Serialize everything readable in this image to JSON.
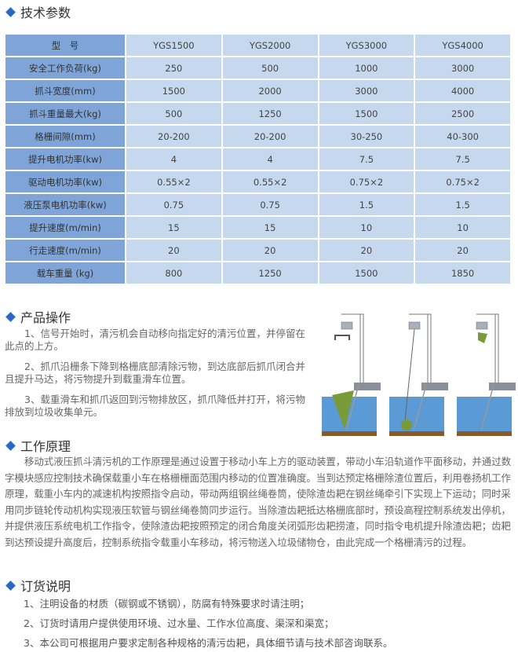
{
  "sections": {
    "specs": {
      "title": "技术参数"
    },
    "operation": {
      "title": "产品操作",
      "items": [
        "1、信号开始时，清污机会自动移向指定好的清污位置，并停留在此点的上方。",
        "2、抓爪沿栅条下降到格栅底部清除污物，到达底部后抓爪闭合并且提升马达，将污物提升到载重滑车位置。",
        "3、载重滑车和抓爪返回到污物排放区，抓爪降低并打开，将污物排放到垃圾收集单元。"
      ]
    },
    "principle": {
      "title": "工作原理",
      "text": "移动式液压抓斗清污机的工作原理是通过设置于移动小车上方的驱动装置，带动小车沿轨道作平面移动，并通过数字模块感应控制技术确保载重小车在格栅栅面范围内移动的位置准确度。当到达预定格栅除渣位置后，利用卷扬机工作原理，载重小车内的减速机构按照指令启动，带动两组钢丝绳卷筒，使除渣齿耙在钢丝绳牵引下实现上下运动；同时采用同步链轮传动机构实现液压软管与钢丝绳卷筒同步运行。当除渣齿耙抵达格栅底部时，预设高程控制系统发出停机，并提供液压系统电机工作指令，使除渣齿耙按照预定的闭合角度关闭弧形齿耙捞渣，同时指令电机提升除渣齿耙；齿耙到达预设提升高度后，控制系统指令载重小车移动，将污物送入垃圾储物仓，由此完成一个格栅清污的过程。"
    },
    "ordering": {
      "title": "订货说明",
      "items": [
        "1、注明设备的材质（碳钢或不锈钢），防腐有特殊要求时请注明；",
        "2、订货时请用户提供使用环境、过水量、工作水位高度、渠深和渠宽；",
        "3、本公司可根据用户要求定制各种规格的清污齿耙，具体细节请与技术部咨询联系。"
      ]
    }
  },
  "table": {
    "rows": [
      [
        "型　号",
        "YGS1500",
        "YGS2000",
        "YGS3000",
        "YGS4000"
      ],
      [
        "安全工作负荷(kg)",
        "250",
        "500",
        "1000",
        "3000"
      ],
      [
        "抓斗宽度(mm)",
        "1500",
        "2000",
        "3000",
        "4000"
      ],
      [
        "抓斗重量最大(kg)",
        "500",
        "1250",
        "1500",
        "2500"
      ],
      [
        "格栅间隙(mm)",
        "20-200",
        "20-200",
        "30-250",
        "40-300"
      ],
      [
        "提升电机功率(kw)",
        "4",
        "4",
        "7.5",
        "7.5"
      ],
      [
        "驱动电机功率(kw)",
        "0.55×2",
        "0.55×2",
        "0.75×2",
        "0.75×2"
      ],
      [
        "液压泵电机功率(kw)",
        "0.75",
        "0.75",
        "1.5",
        "1.5"
      ],
      [
        "提升速度(m/min)",
        "15",
        "15",
        "10",
        "10"
      ],
      [
        "行走速度(m/min)",
        "20",
        "20",
        "20",
        "20"
      ],
      [
        "载车重量 (kg)",
        "800",
        "1250",
        "1500",
        "1850"
      ]
    ]
  },
  "colors": {
    "accent": "#2a68c2",
    "label_cell": "#7fa4d8",
    "value_cell": "#c6d8ee",
    "water": "#5b9bd5",
    "ground": "#8b5a2b",
    "debris": "#7a9a3a"
  }
}
